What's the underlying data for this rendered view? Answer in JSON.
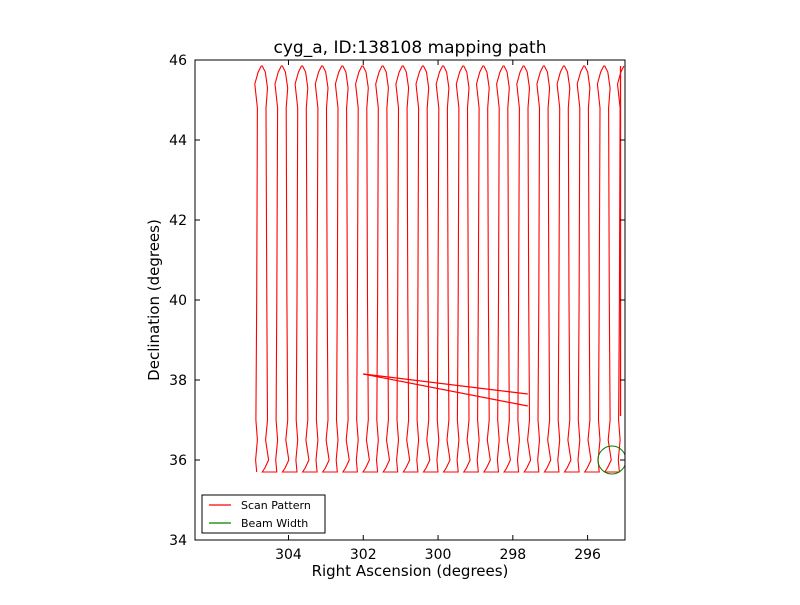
{
  "chart_data": {
    "type": "line",
    "title": "cyg_a, ID:138108 mapping path",
    "xlabel": "Right Ascension (degrees)",
    "ylabel": "Declination (degrees)",
    "xlim": [
      306.5,
      295.0
    ],
    "ylim": [
      34,
      46
    ],
    "x_inverted": true,
    "xticks": [
      304,
      302,
      300,
      298,
      296
    ],
    "yticks": [
      34,
      36,
      38,
      40,
      42,
      44,
      46
    ],
    "grid": false,
    "legend_placement": "lower-left",
    "scan": {
      "ra_start": 304.85,
      "ra_end": 295.15,
      "num_legs": 37,
      "dec_low": 35.7,
      "dec_high": 45.85,
      "wiggle_dec_upper": [
        45.1,
        45.75
      ],
      "wiggle_dec_lower": [
        35.75,
        36.7
      ]
    },
    "series": [
      {
        "name": "Scan Pattern",
        "color": "#ff0000",
        "crossing_segments": [
          {
            "x": [
              302.0,
              297.6
            ],
            "y": [
              38.15,
              37.65
            ]
          },
          {
            "x": [
              302.0,
              297.6
            ],
            "y": [
              38.15,
              37.35
            ]
          }
        ]
      },
      {
        "name": "Beam Width",
        "color": "#008000",
        "beam": {
          "ra": 295.35,
          "dec": 36.0,
          "radius_deg": 0.35
        }
      }
    ]
  }
}
